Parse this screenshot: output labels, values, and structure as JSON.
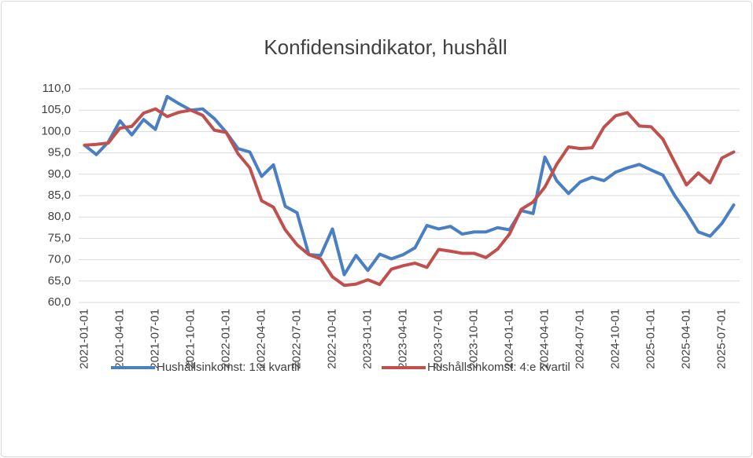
{
  "chart_data": {
    "type": "line",
    "title": "Konfidensindikator, hushåll",
    "categories": [
      "2021-01-01",
      null,
      null,
      "2021-04-01",
      null,
      null,
      "2021-07-01",
      null,
      null,
      "2021-10-01",
      null,
      null,
      "2022-01-01",
      null,
      null,
      "2022-04-01",
      null,
      null,
      "2022-07-01",
      null,
      null,
      "2022-10-01",
      null,
      null,
      "2023-01-01",
      null,
      null,
      "2023-04-01",
      null,
      null,
      "2023-07-01",
      null,
      null,
      "2023-10-01",
      null,
      null,
      "2024-01-01",
      null,
      null,
      "2024-04-01",
      null,
      null,
      "2024-07-01",
      null,
      null,
      "2024-10-01",
      null,
      null,
      "2025-01-01",
      null,
      null,
      "2025-04-01",
      null,
      null,
      "2025-07-01",
      null
    ],
    "series": [
      {
        "name": "Hushållsinkomst: 1:a kvartil",
        "color": "#4a7fc1",
        "values": [
          96.8,
          94.6,
          97.5,
          102.5,
          99.2,
          102.8,
          100.5,
          108.2,
          106.5,
          105.0,
          105.3,
          103.0,
          99.8,
          96.0,
          95.2,
          89.5,
          92.2,
          82.5,
          81.0,
          71.2,
          71.0,
          77.2,
          66.5,
          71.0,
          67.5,
          71.3,
          70.2,
          71.2,
          72.8,
          78.0,
          77.2,
          77.8,
          76.0,
          76.5,
          76.5,
          77.5,
          77.0,
          81.5,
          80.8,
          94.0,
          88.5,
          85.5,
          88.2,
          89.3,
          88.5,
          90.5,
          91.5,
          92.3,
          91.0,
          89.8,
          85.0,
          81.0,
          76.5,
          75.5,
          78.5,
          82.8
        ]
      },
      {
        "name": "Hushållsinkomst: 4:e kvartil",
        "color": "#c0504d",
        "values": [
          96.8,
          97.0,
          97.3,
          100.8,
          101.2,
          104.3,
          105.3,
          103.5,
          104.5,
          105.0,
          103.8,
          100.3,
          99.8,
          94.8,
          91.5,
          83.8,
          82.3,
          77.0,
          73.5,
          71.2,
          70.2,
          66.0,
          64.0,
          64.3,
          65.3,
          64.2,
          67.8,
          68.6,
          69.2,
          68.2,
          72.4,
          72.0,
          71.5,
          71.5,
          70.5,
          72.5,
          76.0,
          81.8,
          83.5,
          87.0,
          92.3,
          96.4,
          96.0,
          96.2,
          101.0,
          103.7,
          104.4,
          101.3,
          101.1,
          98.2,
          92.8,
          87.5,
          90.3,
          88.0,
          93.8,
          95.2
        ]
      }
    ],
    "ylim": [
      60,
      110
    ],
    "yticks": [
      {
        "value": 60,
        "label": "60,0"
      },
      {
        "value": 65,
        "label": "65,0"
      },
      {
        "value": 70,
        "label": "70,0"
      },
      {
        "value": 75,
        "label": "75,0"
      },
      {
        "value": 80,
        "label": "80,0"
      },
      {
        "value": 85,
        "label": "85,0"
      },
      {
        "value": 90,
        "label": "90,0"
      },
      {
        "value": 95,
        "label": "95,0"
      },
      {
        "value": 100,
        "label": "100,0"
      },
      {
        "value": 105,
        "label": "105,0"
      },
      {
        "value": 110,
        "label": "110,0"
      }
    ],
    "grid": true,
    "legend": "bottom"
  }
}
